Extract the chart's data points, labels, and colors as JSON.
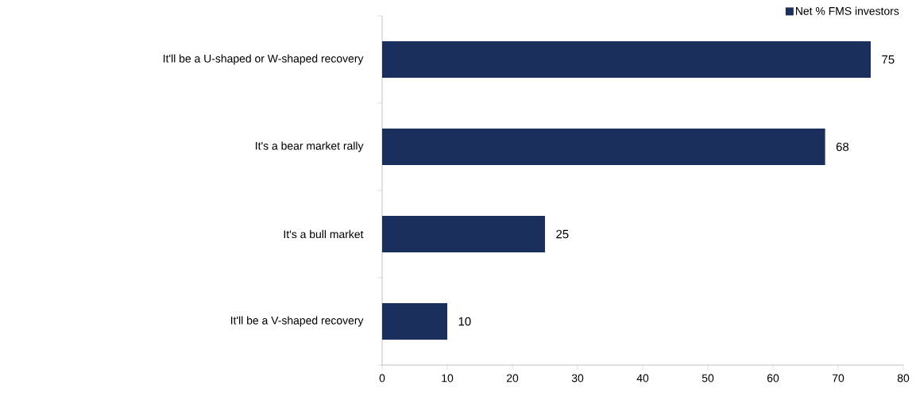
{
  "chart_data": {
    "type": "bar",
    "orientation": "horizontal",
    "categories": [
      "It'll be a U-shaped or W-shaped recovery",
      "It's a bear market rally",
      "It's a bull market",
      "It'll be a V-shaped recovery"
    ],
    "series": [
      {
        "name": "Net % FMS investors",
        "color": "#1b2f5c",
        "values": [
          75,
          68,
          25,
          10
        ]
      }
    ],
    "xlim": [
      0,
      80
    ],
    "xticks": [
      0,
      10,
      20,
      30,
      40,
      50,
      60,
      70,
      80
    ],
    "data_labels": true,
    "legend": "top right"
  }
}
